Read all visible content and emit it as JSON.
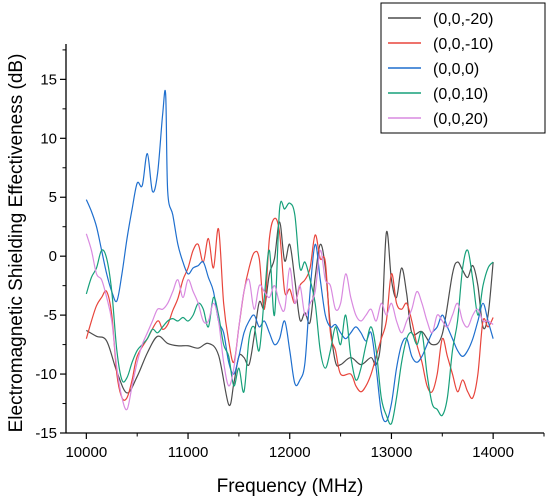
{
  "chart_data": {
    "type": "line",
    "xlabel": "Frequency (MHz)",
    "ylabel": "Electromagnetic Shielding Effectiveness (dB)",
    "xlim": [
      9800,
      14500
    ],
    "ylim": [
      -15,
      18
    ],
    "xticks": [
      10000,
      11000,
      12000,
      13000,
      14000
    ],
    "yticks": [
      -15,
      -10,
      -5,
      0,
      5,
      10,
      15
    ],
    "grid": false,
    "legend_position": "top-right",
    "series": [
      {
        "name": "(0,0,-20)",
        "color": "#4d4d4d",
        "x": [
          10000,
          10100,
          10200,
          10300,
          10400,
          10500,
          10600,
          10700,
          10800,
          10900,
          11000,
          11100,
          11200,
          11300,
          11400,
          11450,
          11500,
          11550,
          11600,
          11650,
          11700,
          11750,
          11800,
          11850,
          11900,
          11950,
          12000,
          12050,
          12100,
          12150,
          12200,
          12250,
          12300,
          12350,
          12400,
          12450,
          12500,
          12600,
          12700,
          12800,
          12850,
          12900,
          12950,
          13000,
          13050,
          13100,
          13150,
          13200,
          13300,
          13400,
          13500,
          13600,
          13650,
          13700,
          13750,
          13800,
          13850,
          13900,
          13950,
          14000
        ],
        "values": [
          -6.3,
          -6.8,
          -7.2,
          -9.8,
          -11.6,
          -10.2,
          -8.2,
          -6.8,
          -7.4,
          -7.6,
          -7.6,
          -7.8,
          -7.4,
          -8.4,
          -12.6,
          -10.8,
          -8.5,
          -8.6,
          -9.2,
          -6.8,
          -3.9,
          -4.4,
          -1.5,
          -0.2,
          2.9,
          -0.4,
          1.0,
          -2.0,
          -5.4,
          -4.8,
          -5.6,
          -1.8,
          1.0,
          -1.0,
          -6.0,
          -9.0,
          -9.2,
          -8.6,
          -9.2,
          -8.6,
          -9.2,
          -6.8,
          2.0,
          -2.0,
          -3.5,
          -1.0,
          -3.2,
          -6.5,
          -6.4,
          -7.5,
          -6.6,
          -1.5,
          -0.5,
          -1.2,
          -1.8,
          -0.8,
          -2.5,
          -6.0,
          -5.0,
          -0.5
        ]
      },
      {
        "name": "(0,0,-10)",
        "color": "#e8453c",
        "x": [
          10000,
          10050,
          10100,
          10150,
          10200,
          10250,
          10300,
          10350,
          10400,
          10450,
          10500,
          10600,
          10700,
          10750,
          10800,
          10850,
          10900,
          10950,
          11000,
          11050,
          11100,
          11150,
          11200,
          11250,
          11300,
          11350,
          11400,
          11450,
          11500,
          11550,
          11600,
          11650,
          11700,
          11750,
          11800,
          11850,
          11900,
          11950,
          12000,
          12050,
          12100,
          12150,
          12200,
          12250,
          12300,
          12350,
          12400,
          12450,
          12500,
          12600,
          12650,
          12700,
          12750,
          12800,
          12850,
          12900,
          12950,
          13000,
          13050,
          13100,
          13150,
          13200,
          13250,
          13300,
          13350,
          13400,
          13450,
          13500,
          13550,
          13600,
          13650,
          13700,
          13750,
          13800,
          13850,
          13900,
          13950,
          14000
        ],
        "values": [
          -7.0,
          -5.5,
          -4.2,
          -3.5,
          -3.0,
          -5.0,
          -10.0,
          -12.0,
          -12.0,
          -10.5,
          -8.5,
          -7.0,
          -5.5,
          -6.2,
          -5.8,
          -4.6,
          -3.6,
          -2.0,
          -1.0,
          0.5,
          1.0,
          -0.5,
          1.5,
          -1.0,
          2.3,
          -4.0,
          -7.2,
          -9.0,
          -6.0,
          -3.0,
          -1.0,
          0.3,
          -0.2,
          -4.5,
          1.5,
          3.2,
          2.0,
          -3.0,
          -2.8,
          -4.0,
          -2.5,
          -2.0,
          -1.0,
          1.8,
          -0.2,
          -0.5,
          -6.5,
          -8.0,
          -10.0,
          -10.0,
          -11.0,
          -11.5,
          -11.0,
          -10.0,
          -8.5,
          -7.0,
          -5.5,
          -1.5,
          -4.0,
          -4.5,
          -4.0,
          -5.5,
          -7.5,
          -9.0,
          -11.0,
          -11.5,
          -10.0,
          -7.0,
          -8.5,
          -10.0,
          -11.5,
          -10.5,
          -11.5,
          -12.0,
          -10.0,
          -5.5,
          -6.0,
          -5.2
        ]
      },
      {
        "name": "(0,0,0)",
        "color": "#1f6fce",
        "x": [
          10000,
          10050,
          10100,
          10150,
          10200,
          10250,
          10300,
          10350,
          10400,
          10450,
          10500,
          10550,
          10600,
          10650,
          10700,
          10750,
          10780,
          10800,
          10850,
          10900,
          10950,
          11000,
          11050,
          11100,
          11150,
          11200,
          11250,
          11300,
          11350,
          11400,
          11450,
          11500,
          11550,
          11600,
          11650,
          11700,
          11750,
          11800,
          11850,
          11900,
          11950,
          12000,
          12050,
          12100,
          12150,
          12200,
          12250,
          12300,
          12350,
          12400,
          12450,
          12500,
          12550,
          12600,
          12650,
          12700,
          12750,
          12800,
          12850,
          12900,
          12950,
          13000,
          13050,
          13100,
          13150,
          13200,
          13250,
          13300,
          13350,
          13400,
          13450,
          13500,
          13550,
          13600,
          13650,
          13700,
          13750,
          13800,
          13850,
          13900,
          13950,
          14000
        ],
        "values": [
          4.8,
          3.8,
          2.5,
          0.5,
          -1.5,
          -3.0,
          -3.8,
          -1.5,
          1.5,
          4.0,
          6.2,
          6.0,
          8.7,
          5.5,
          7.0,
          12.0,
          13.7,
          5.5,
          3.5,
          1.0,
          -0.5,
          -1.5,
          -1.0,
          -0.8,
          -0.5,
          -1.8,
          -3.0,
          -5.5,
          -6.5,
          -9.0,
          -10.0,
          -8.5,
          -6.5,
          -5.5,
          -5.0,
          -6.0,
          -5.5,
          -6.5,
          -7.5,
          -7.0,
          -5.5,
          -8.0,
          -10.8,
          -10.5,
          -9.0,
          -3.0,
          1.0,
          -2.0,
          -5.0,
          -6.0,
          -5.8,
          -6.5,
          -7.0,
          -6.5,
          -6.0,
          -6.5,
          -7.2,
          -6.5,
          -9.5,
          -13.2,
          -14.0,
          -12.5,
          -9.5,
          -7.5,
          -7.0,
          -8.5,
          -9.0,
          -8.5,
          -7.5,
          -6.5,
          -6.0,
          -5.0,
          -6.0,
          -7.0,
          -8.0,
          -8.5,
          -8.0,
          -7.0,
          -5.5,
          -4.0,
          -5.5,
          -7.0
        ]
      },
      {
        "name": "(0,0,10)",
        "color": "#17a07a",
        "x": [
          10000,
          10050,
          10100,
          10150,
          10200,
          10250,
          10300,
          10350,
          10400,
          10450,
          10500,
          10550,
          10600,
          10650,
          10700,
          10750,
          10800,
          10850,
          10900,
          10950,
          11000,
          11050,
          11100,
          11150,
          11200,
          11250,
          11300,
          11350,
          11400,
          11450,
          11500,
          11550,
          11600,
          11650,
          11700,
          11750,
          11800,
          11850,
          11900,
          11950,
          12000,
          12050,
          12100,
          12150,
          12200,
          12250,
          12300,
          12350,
          12400,
          12450,
          12500,
          12550,
          12600,
          12650,
          12700,
          12750,
          12800,
          12850,
          12900,
          12950,
          13000,
          13050,
          13100,
          13150,
          13200,
          13250,
          13300,
          13350,
          13400,
          13450,
          13500,
          13550,
          13600,
          13650,
          13700,
          13750,
          13800,
          13850,
          13900,
          13950,
          14000
        ],
        "values": [
          -3.2,
          -1.8,
          -1.0,
          0.5,
          -0.2,
          -3.0,
          -8.0,
          -10.5,
          -10.3,
          -9.0,
          -8.0,
          -7.5,
          -7.0,
          -6.2,
          -6.5,
          -6.0,
          -5.5,
          -5.3,
          -5.5,
          -5.2,
          -5.5,
          -5.0,
          -4.0,
          -4.5,
          -6.0,
          -3.5,
          -5.0,
          -7.5,
          -8.5,
          -11.0,
          -9.5,
          -11.5,
          -7.0,
          -6.0,
          -8.0,
          -3.5,
          0.5,
          -5.0,
          4.0,
          4.0,
          4.5,
          3.5,
          -1.0,
          -0.5,
          -2.0,
          -4.0,
          -8.0,
          -9.5,
          -8.0,
          -6.0,
          -7.5,
          -5.0,
          -8.5,
          -10.5,
          -9.5,
          -7.5,
          -6.0,
          -8.0,
          -12.0,
          -13.5,
          -14.2,
          -12.0,
          -9.0,
          -7.0,
          -6.5,
          -7.5,
          -6.5,
          -10.0,
          -12.5,
          -13.0,
          -13.5,
          -12.0,
          -8.0,
          -5.5,
          -1.0,
          0.5,
          -2.0,
          -5.0,
          -2.5,
          -1.0,
          -0.5
        ]
      },
      {
        "name": "(0,0,20)",
        "color": "#d98ae0",
        "x": [
          10000,
          10050,
          10100,
          10150,
          10200,
          10250,
          10300,
          10350,
          10400,
          10450,
          10500,
          10550,
          10600,
          10650,
          10700,
          10750,
          10800,
          10850,
          10900,
          10950,
          11000,
          11050,
          11100,
          11150,
          11200,
          11250,
          11300,
          11350,
          11400,
          11450,
          11500,
          11550,
          11600,
          11650,
          11700,
          11750,
          11800,
          11850,
          11900,
          11950,
          12000,
          12050,
          12100,
          12150,
          12200,
          12250,
          12300,
          12350,
          12400,
          12450,
          12500,
          12550,
          12600,
          12650,
          12700,
          12750,
          12800,
          12850,
          12900,
          12950,
          13000,
          13050,
          13100,
          13150,
          13200,
          13250,
          13300,
          13350,
          13400,
          13450,
          13500,
          13550,
          13600,
          13650,
          13700,
          13750,
          13800,
          13850,
          13900,
          13950,
          14000
        ],
        "values": [
          1.9,
          0.5,
          -1.5,
          -2.0,
          -3.5,
          -5.5,
          -9.5,
          -12.0,
          -13.0,
          -11.0,
          -9.0,
          -7.5,
          -6.5,
          -5.5,
          -4.5,
          -4.5,
          -4.0,
          -3.0,
          -2.0,
          -3.5,
          -2.0,
          -3.0,
          -4.0,
          -5.5,
          -5.5,
          -4.0,
          -5.5,
          -9.0,
          -11.0,
          -9.5,
          -6.0,
          -3.0,
          -2.0,
          -4.5,
          -2.5,
          -3.0,
          -3.5,
          -2.5,
          -4.0,
          -4.5,
          -1.0,
          -4.0,
          -2.5,
          -5.0,
          -4.0,
          -3.0,
          0.5,
          -2.0,
          -2.5,
          -4.5,
          -4.0,
          -1.5,
          -3.5,
          -5.0,
          -5.5,
          -5.0,
          -4.5,
          -5.5,
          -4.0,
          -5.0,
          -4.0,
          -5.5,
          -6.5,
          -5.5,
          -4.5,
          -3.0,
          -4.0,
          -5.5,
          -6.5,
          -5.0,
          -5.5,
          -6.0,
          -5.0,
          -4.0,
          -5.5,
          -6.0,
          -5.0,
          -4.5,
          -5.5,
          -5.5,
          -5.8
        ]
      }
    ]
  }
}
